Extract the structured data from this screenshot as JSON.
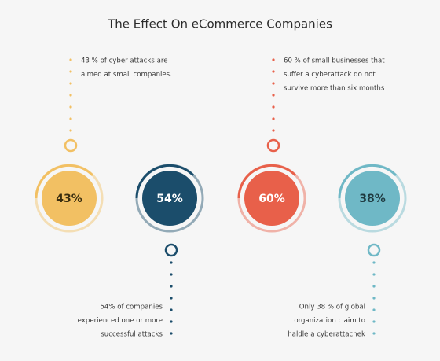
{
  "title": "The Effect On eCommerce Companies",
  "items": [
    {
      "label": "43%",
      "color": "#f2c063",
      "text_color": "#3a2e10",
      "position": "top",
      "description": [
        "43 % of cyber attacks are",
        "aimed at small companies."
      ]
    },
    {
      "label": "54%",
      "color": "#1b4d6b",
      "text_color": "#ffffff",
      "position": "bottom",
      "description": [
        "54% of companies",
        "experienced one or more",
        "successful attacks"
      ]
    },
    {
      "label": "60%",
      "color": "#e8604a",
      "text_color": "#ffffff",
      "position": "top",
      "description": [
        "60 % of small businesses that",
        "suffer a cyberattack do not",
        "survive more than six months"
      ]
    },
    {
      "label": "38%",
      "color": "#6fb8c6",
      "text_color": "#1f3a40",
      "position": "bottom",
      "description": [
        "Only 38 % of global",
        "organization  claim to",
        "haldle a cyberattachek"
      ]
    }
  ]
}
